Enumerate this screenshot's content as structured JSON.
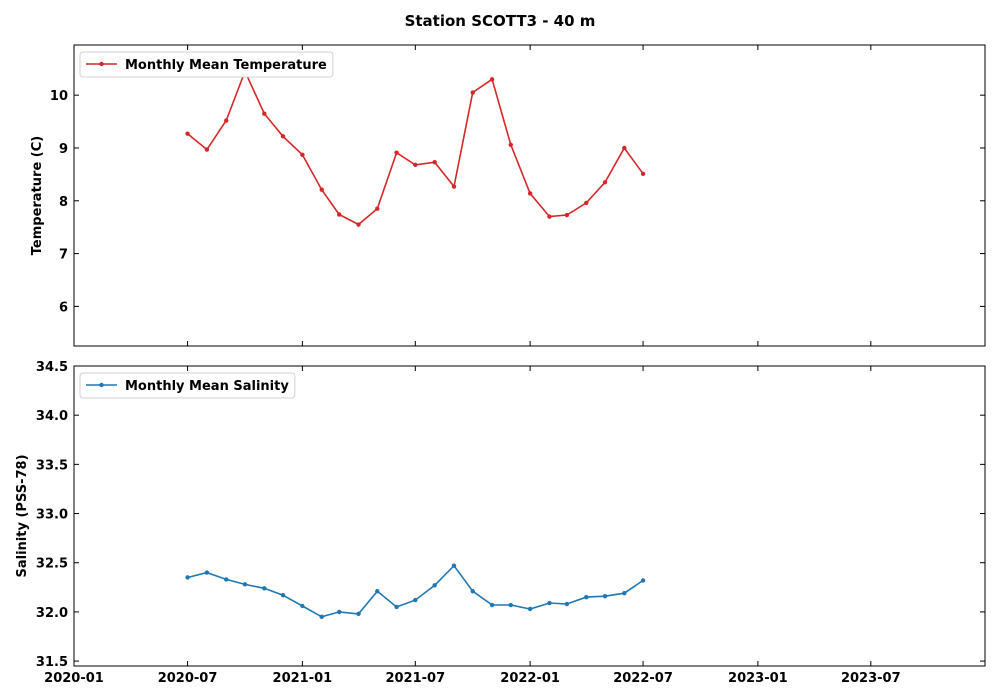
{
  "figure_title": "Station SCOTT3 - 40 m",
  "chart_data": [
    {
      "type": "line",
      "ylabel": "Temperature (C)",
      "ylim": [
        5.25,
        10.95
      ],
      "yticks": [
        6,
        7,
        8,
        9,
        10
      ],
      "xlim": [
        "2020-01-01",
        "2023-12-31"
      ],
      "xticks": [
        "2020-01",
        "2020-07",
        "2021-01",
        "2021-07",
        "2022-01",
        "2022-07",
        "2023-01",
        "2023-07"
      ],
      "legend_position": "top-left",
      "grid": false,
      "series": [
        {
          "name": "Monthly Mean Temperature",
          "color": "#d62728",
          "x": [
            "2020-07",
            "2020-08",
            "2020-09",
            "2020-10",
            "2020-11",
            "2020-12",
            "2021-01",
            "2021-02",
            "2021-03",
            "2021-04",
            "2021-05",
            "2021-06",
            "2021-07",
            "2021-08",
            "2021-09",
            "2021-10",
            "2021-11",
            "2021-12",
            "2022-01",
            "2022-02",
            "2022-03",
            "2022-04",
            "2022-05",
            "2022-06",
            "2022-07"
          ],
          "values": [
            9.27,
            8.97,
            9.52,
            10.45,
            9.65,
            9.22,
            8.87,
            8.21,
            7.74,
            7.55,
            7.85,
            8.91,
            8.68,
            8.73,
            8.27,
            10.05,
            10.3,
            9.06,
            8.14,
            7.7,
            7.73,
            7.96,
            8.35,
            9.0,
            8.51
          ]
        }
      ]
    },
    {
      "type": "line",
      "ylabel": "Salinity (PSS-78)",
      "ylim": [
        31.45,
        34.5
      ],
      "yticks": [
        31.5,
        32.0,
        32.5,
        33.0,
        33.5,
        34.0,
        34.5
      ],
      "xlim": [
        "2020-01-01",
        "2023-12-31"
      ],
      "xticks": [
        "2020-01",
        "2020-07",
        "2021-01",
        "2021-07",
        "2022-01",
        "2022-07",
        "2023-01",
        "2023-07"
      ],
      "legend_position": "top-left",
      "grid": false,
      "series": [
        {
          "name": "Monthly Mean Salinity",
          "color": "#1f77b4",
          "x": [
            "2020-07",
            "2020-08",
            "2020-09",
            "2020-10",
            "2020-11",
            "2020-12",
            "2021-01",
            "2021-02",
            "2021-03",
            "2021-04",
            "2021-05",
            "2021-06",
            "2021-07",
            "2021-08",
            "2021-09",
            "2021-10",
            "2021-11",
            "2021-12",
            "2022-01",
            "2022-02",
            "2022-03",
            "2022-04",
            "2022-05",
            "2022-06",
            "2022-07"
          ],
          "values": [
            32.35,
            32.4,
            32.33,
            32.28,
            32.24,
            32.17,
            32.06,
            31.95,
            32.0,
            31.98,
            32.21,
            32.05,
            32.12,
            32.27,
            32.47,
            32.21,
            32.07,
            32.07,
            32.03,
            32.09,
            32.08,
            32.15,
            32.16,
            32.19,
            32.32
          ]
        }
      ]
    }
  ]
}
